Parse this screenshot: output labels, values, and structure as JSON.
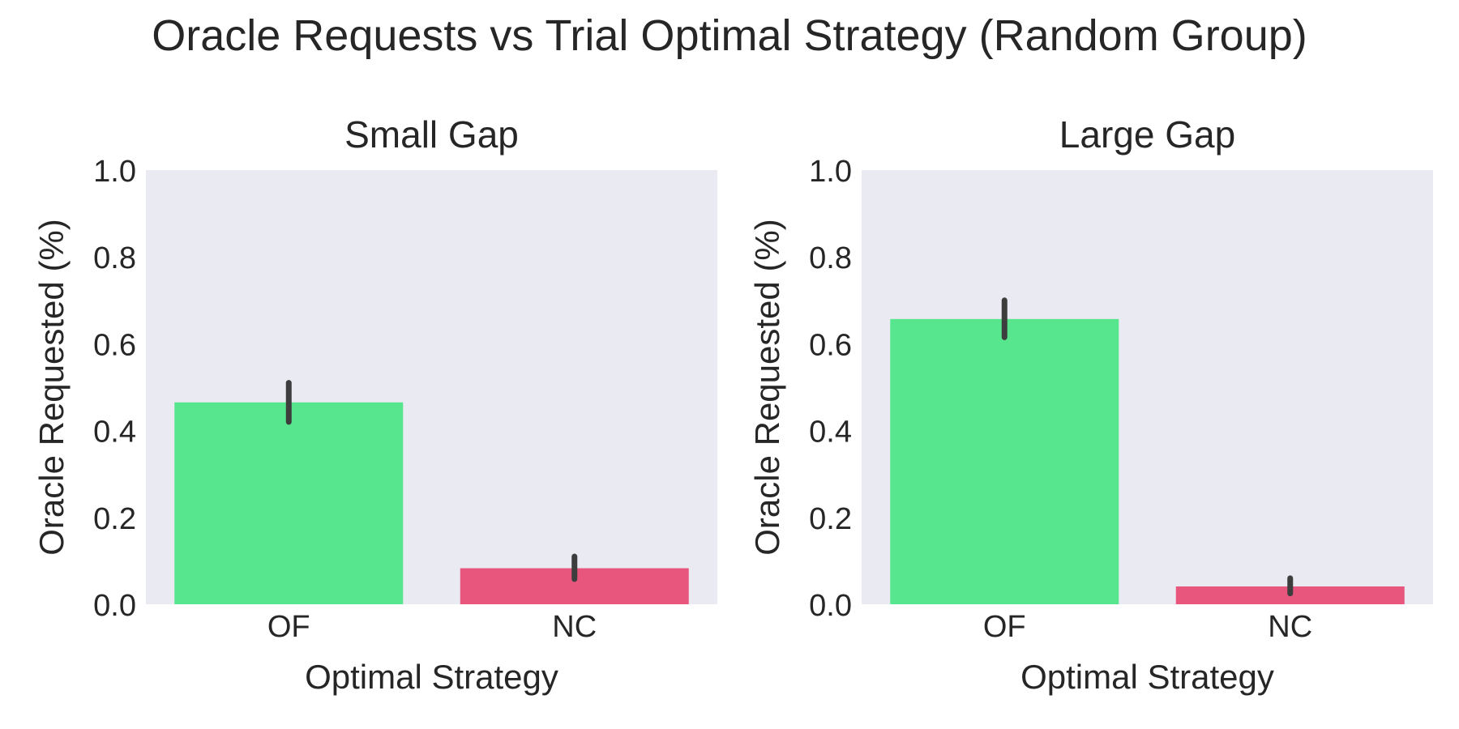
{
  "figure": {
    "title": "Oracle Requests vs Trial Optimal Strategy (Random Group)"
  },
  "chart_data": [
    {
      "type": "bar",
      "title": "Small Gap",
      "xlabel": "Optimal Strategy",
      "ylabel": "Oracle Requested (%)",
      "categories": [
        "OF",
        "NC"
      ],
      "values": [
        0.465,
        0.083
      ],
      "error_low": [
        0.42,
        0.058
      ],
      "error_high": [
        0.51,
        0.11
      ],
      "ylim": [
        0.0,
        1.0
      ],
      "yticks": [
        "0.0",
        "0.2",
        "0.4",
        "0.6",
        "0.8",
        "1.0"
      ],
      "bar_colors": [
        "#57e68e",
        "#e8567e"
      ],
      "grid": false
    },
    {
      "type": "bar",
      "title": "Large Gap",
      "xlabel": "Optimal Strategy",
      "ylabel": "Oracle Requested (%)",
      "categories": [
        "OF",
        "NC"
      ],
      "values": [
        0.657,
        0.041
      ],
      "error_low": [
        0.615,
        0.025
      ],
      "error_high": [
        0.7,
        0.06
      ],
      "ylim": [
        0.0,
        1.0
      ],
      "yticks": [
        "0.0",
        "0.2",
        "0.4",
        "0.6",
        "0.8",
        "1.0"
      ],
      "bar_colors": [
        "#57e68e",
        "#e8567e"
      ],
      "grid": false
    }
  ],
  "style": {
    "panel_background": "#eaeaf2",
    "error_bar_color": "#3d3d3d",
    "text_color": "#262626"
  }
}
